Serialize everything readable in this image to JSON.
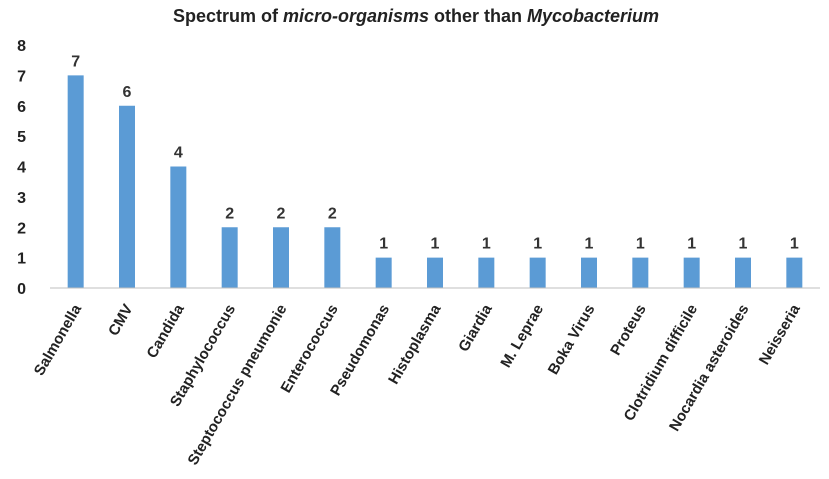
{
  "chart_data": {
    "type": "bar",
    "title_parts": [
      {
        "text": "Spectrum of ",
        "italic": false
      },
      {
        "text": "micro-organisms",
        "italic": true
      },
      {
        "text": " other than ",
        "italic": false
      },
      {
        "text": "Mycobacterium",
        "italic": true
      }
    ],
    "categories": [
      "Salmonella",
      "CMV",
      "Candida",
      "Staphylococcus",
      "Steptococcus pneumonie",
      "Enterococcus",
      "Pseudomonas",
      "Histoplasma",
      "Giardia",
      "M. Leprae",
      "Boka Virus",
      "Proteus",
      "Clotridium difficile",
      "Nocardia asteroides",
      "Neisseria"
    ],
    "values": [
      7,
      6,
      4,
      2,
      2,
      2,
      1,
      1,
      1,
      1,
      1,
      1,
      1,
      1,
      1
    ],
    "ylim": [
      0,
      8
    ],
    "yticks": [
      0,
      1,
      2,
      3,
      4,
      5,
      6,
      7,
      8
    ],
    "grid": false,
    "legend": "none",
    "bar_color": "#5B9BD5"
  }
}
